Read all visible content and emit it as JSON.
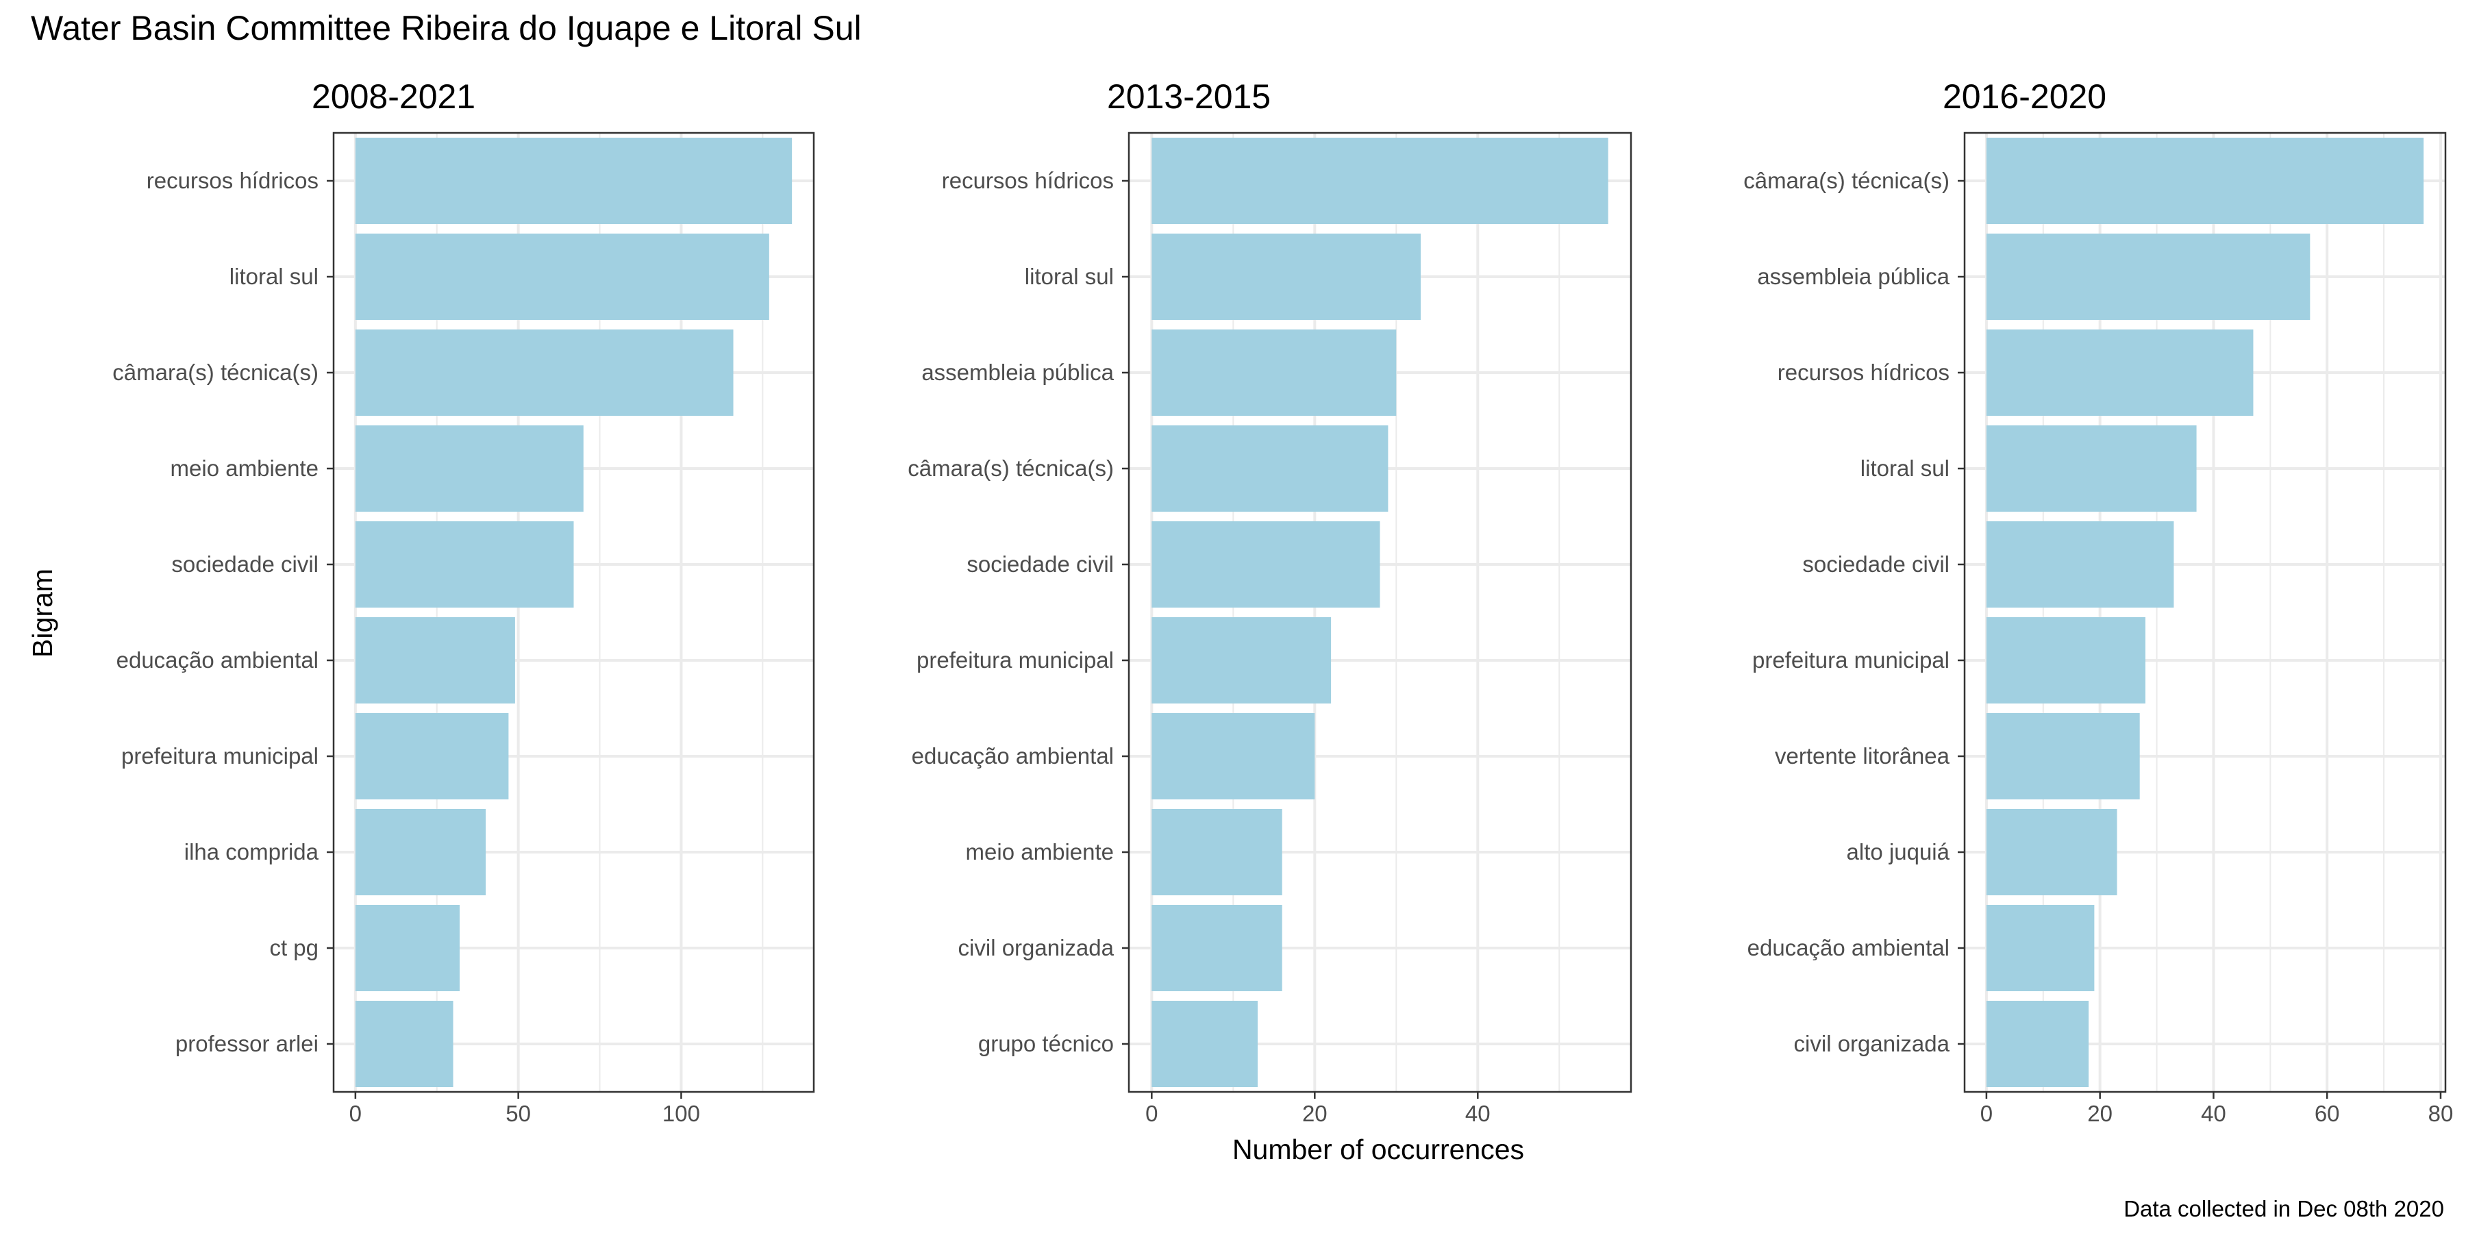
{
  "title": "Water Basin Committee Ribeira do Iguape e Litoral Sul",
  "ylabel": "Bigram",
  "xlabel": "Number of occurrences",
  "caption": "Data collected in Dec 08th 2020",
  "colors": {
    "bar": "#a1d0e1",
    "panel_border": "#333333",
    "grid": "#ebebeb",
    "tick_text": "#4d4d4d"
  },
  "chart_data": [
    {
      "type": "bar",
      "orientation": "horizontal",
      "title": "2008-2021",
      "categories": [
        "recursos hídricos",
        "litoral sul",
        "câmara(s) técnica(s)",
        "meio ambiente",
        "sociedade civil",
        "educação ambiental",
        "prefeitura municipal",
        "ilha comprida",
        "ct pg",
        "professor arlei"
      ],
      "values": [
        134,
        127,
        116,
        70,
        67,
        49,
        47,
        40,
        32,
        30
      ],
      "xlim": [
        -6.7,
        140.7
      ],
      "xticks": [
        0,
        50,
        100
      ],
      "xminor": [
        25,
        75,
        125
      ],
      "grid": true
    },
    {
      "type": "bar",
      "orientation": "horizontal",
      "title": "2013-2015",
      "categories": [
        "recursos hídricos",
        "litoral sul",
        "assembleia pública",
        "câmara(s) técnica(s)",
        "sociedade civil",
        "prefeitura municipal",
        "educação ambiental",
        "meio ambiente",
        "civil organizada",
        "grupo técnico"
      ],
      "values": [
        56,
        33,
        30,
        29,
        28,
        22,
        20,
        16,
        16,
        13
      ],
      "xlim": [
        -2.8,
        58.8
      ],
      "xticks": [
        0,
        20,
        40
      ],
      "xminor": [
        10,
        30,
        50
      ],
      "grid": true
    },
    {
      "type": "bar",
      "orientation": "horizontal",
      "title": "2016-2020",
      "categories": [
        "câmara(s) técnica(s)",
        "assembleia pública",
        "recursos hídricos",
        "litoral sul",
        "sociedade civil",
        "prefeitura municipal",
        "vertente litorânea",
        "alto juquiá",
        "educação ambiental",
        "civil organizada"
      ],
      "values": [
        77,
        57,
        47,
        37,
        33,
        28,
        27,
        23,
        19,
        18
      ],
      "xlim": [
        -3.85,
        80.85
      ],
      "xticks": [
        0,
        20,
        40,
        60,
        80
      ],
      "xminor": [
        10,
        30,
        50,
        70
      ],
      "grid": true
    }
  ]
}
